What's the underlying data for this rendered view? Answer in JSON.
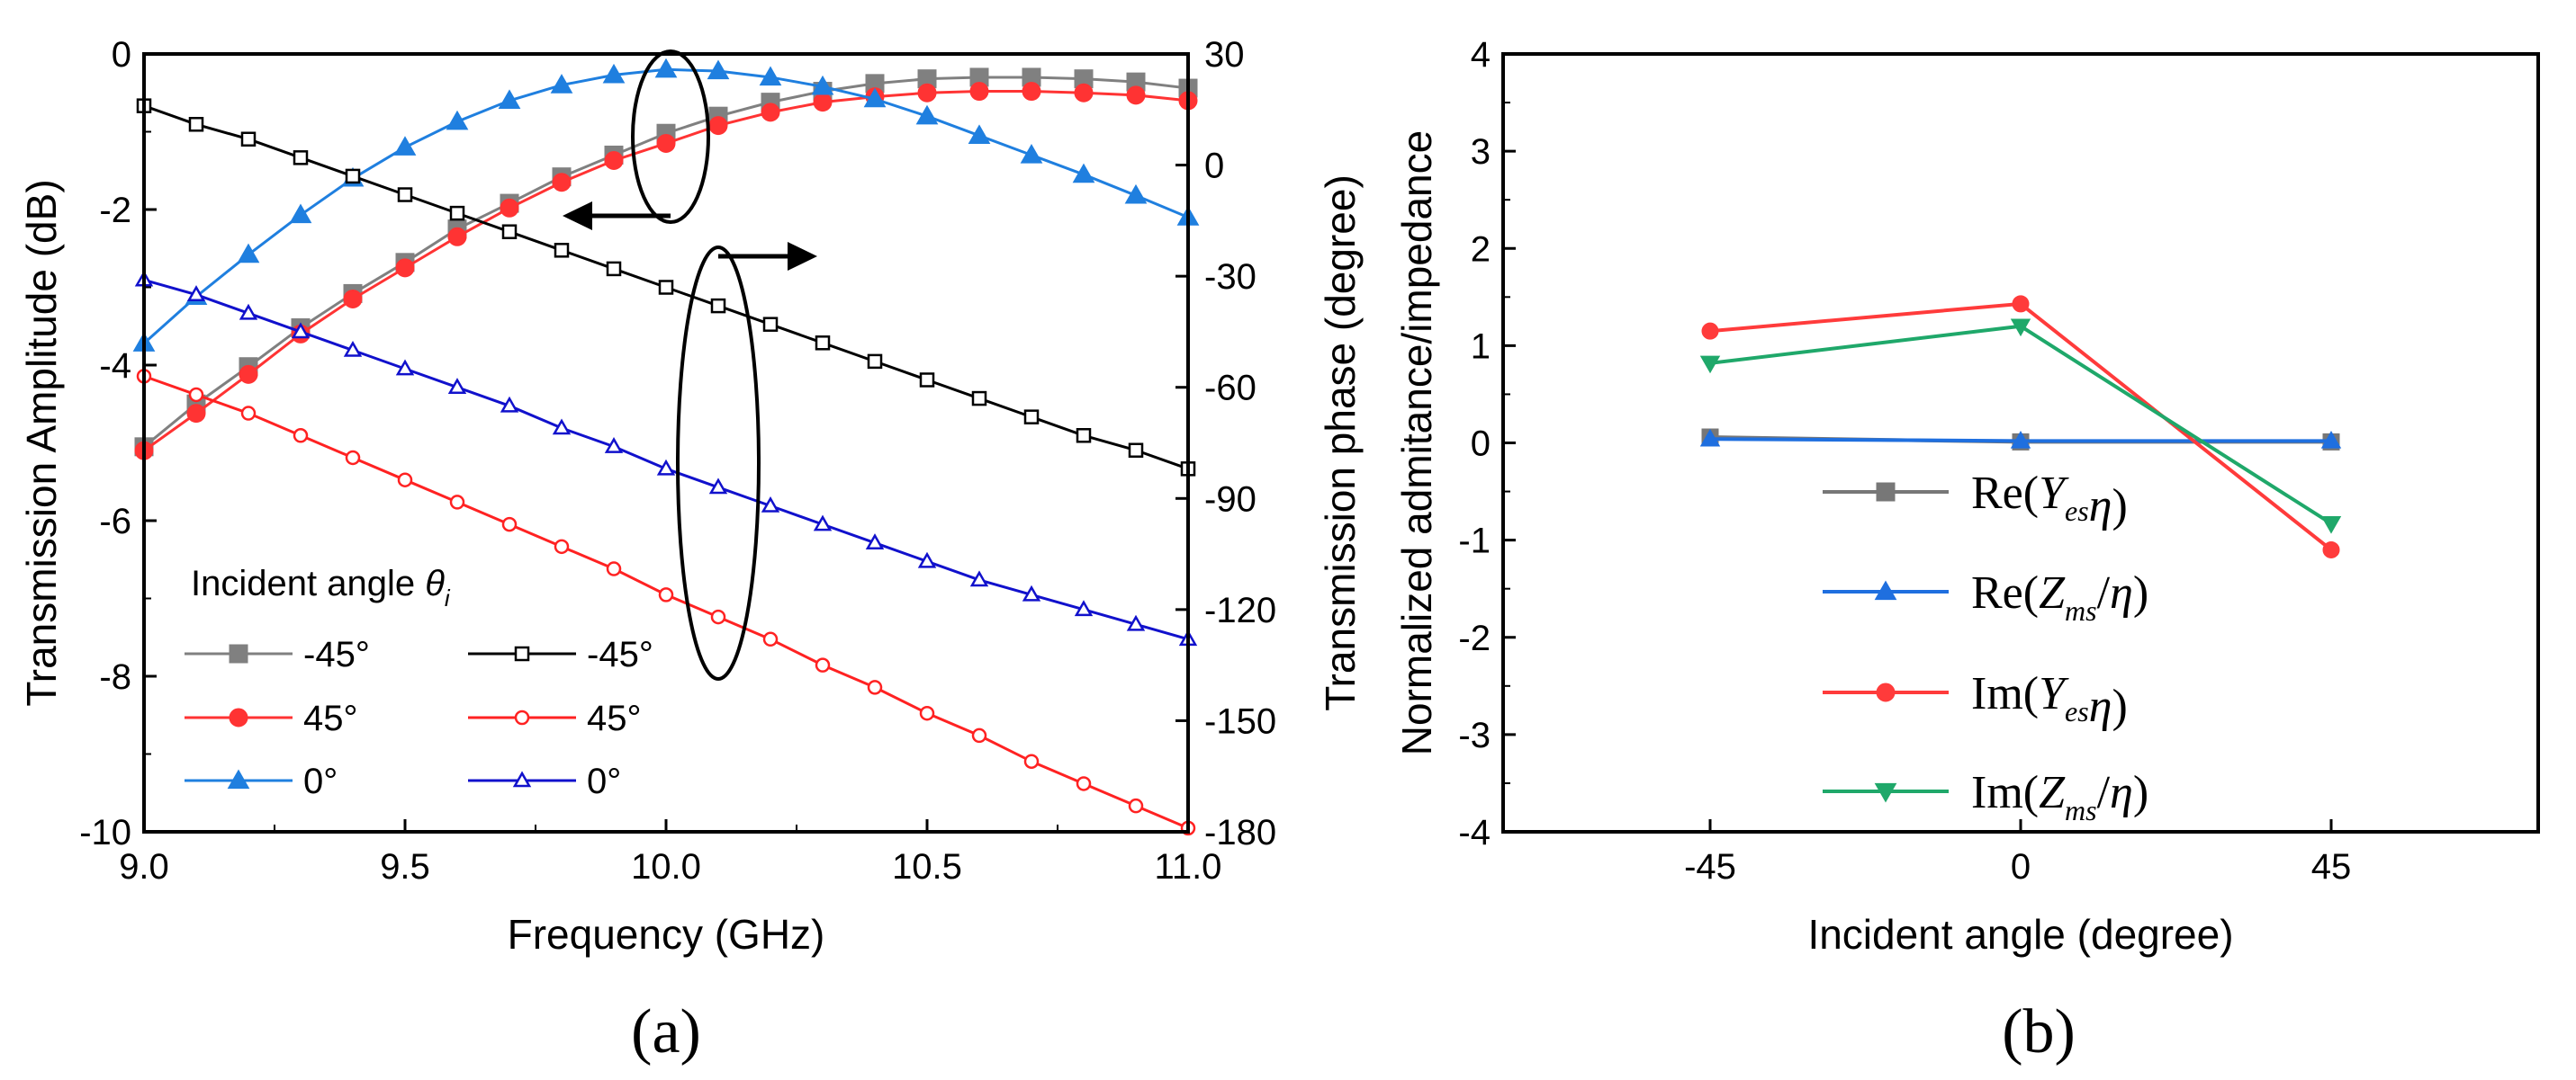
{
  "chart_data": [
    {
      "type": "line",
      "panel_label": "(a)",
      "xlabel": "Frequency (GHz)",
      "ylabel": "Transmission Amplitude (dB)",
      "ylabel_right": "Transmission phase (degree)",
      "xlim": [
        9.0,
        11.0
      ],
      "ylim": [
        -10,
        0
      ],
      "ylim_right": [
        -180,
        30
      ],
      "x_ticks": [
        "9.0",
        "9.5",
        "10.0",
        "10.5",
        "11.0"
      ],
      "y_ticks": [
        "0",
        "-2",
        "-4",
        "-6",
        "-8",
        "-10"
      ],
      "y_ticks_right": [
        "30",
        "0",
        "-30",
        "-60",
        "-90",
        "-120",
        "-150",
        "-180"
      ],
      "legend_title": "Incident angle",
      "legend_symbol": "θ",
      "legend_subscript": "i",
      "legend_placement": "bottom-left",
      "x": [
        9.0,
        9.1,
        9.2,
        9.3,
        9.4,
        9.5,
        9.6,
        9.7,
        9.8,
        9.9,
        10.0,
        10.1,
        10.2,
        10.3,
        10.4,
        10.5,
        10.6,
        10.7,
        10.8,
        10.9,
        11.0
      ],
      "series": [
        {
          "name": "-45°",
          "axis": "left",
          "color": "#808080",
          "marker": "square",
          "filled": true,
          "values": [
            -5.05,
            -4.5,
            -4.02,
            -3.52,
            -3.08,
            -2.68,
            -2.25,
            -1.92,
            -1.58,
            -1.3,
            -1.02,
            -0.8,
            -0.62,
            -0.48,
            -0.38,
            -0.32,
            -0.3,
            -0.3,
            -0.32,
            -0.36,
            -0.44
          ]
        },
        {
          "name": "45°",
          "axis": "left",
          "color": "#ff3333",
          "marker": "circle",
          "filled": true,
          "values": [
            -5.1,
            -4.62,
            -4.12,
            -3.6,
            -3.15,
            -2.75,
            -2.35,
            -1.98,
            -1.65,
            -1.37,
            -1.15,
            -0.92,
            -0.75,
            -0.62,
            -0.55,
            -0.5,
            -0.48,
            -0.48,
            -0.5,
            -0.53,
            -0.6
          ]
        },
        {
          "name": "0°",
          "axis": "left",
          "color": "#1f7fdf",
          "marker": "triangle-up",
          "filled": true,
          "values": [
            -3.72,
            -3.12,
            -2.58,
            -2.07,
            -1.6,
            -1.2,
            -0.87,
            -0.6,
            -0.4,
            -0.27,
            -0.2,
            -0.22,
            -0.3,
            -0.42,
            -0.58,
            -0.8,
            -1.05,
            -1.3,
            -1.55,
            -1.82,
            -2.1
          ]
        },
        {
          "name": "-45°",
          "axis": "right",
          "color": "#000000",
          "marker": "square",
          "filled": false,
          "values": [
            16,
            11,
            7,
            2,
            -3,
            -8,
            -13,
            -18,
            -23,
            -28,
            -33,
            -38,
            -43,
            -48,
            -53,
            -58,
            -63,
            -68,
            -73,
            -77,
            -82
          ]
        },
        {
          "name": "45°",
          "axis": "right",
          "color": "#ff2222",
          "marker": "circle",
          "filled": false,
          "values": [
            -57,
            -62,
            -67,
            -73,
            -79,
            -85,
            -91,
            -97,
            -103,
            -109,
            -116,
            -122,
            -128,
            -135,
            -141,
            -148,
            -154,
            -161,
            -167,
            -173,
            -179
          ]
        },
        {
          "name": "0°",
          "axis": "right",
          "color": "#1111cc",
          "marker": "triangle-up",
          "filled": false,
          "values": [
            -31,
            -35,
            -40,
            -45,
            -50,
            -55,
            -60,
            -65,
            -71,
            -76,
            -82,
            -87,
            -92,
            -97,
            -102,
            -107,
            -112,
            -116,
            -120,
            -124,
            -128
          ]
        }
      ]
    },
    {
      "type": "line",
      "panel_label": "(b)",
      "xlabel": "Incident angle (degree)",
      "ylabel": "Normalized admitance/impedance",
      "xlim": [
        -75,
        75
      ],
      "ylim": [
        -4,
        4
      ],
      "x_ticks": [
        "-45",
        "0",
        "45"
      ],
      "y_ticks": [
        "4",
        "3",
        "2",
        "1",
        "0",
        "-1",
        "-2",
        "-3",
        "-4"
      ],
      "x": [
        -45,
        0,
        45
      ],
      "legend_placement": "lower-center",
      "series": [
        {
          "fn": "Re",
          "var": "Y",
          "sub": "es",
          "op": "",
          "eta": "η",
          "color": "#777777",
          "marker": "square",
          "values": [
            0.06,
            0.01,
            0.01
          ]
        },
        {
          "fn": "Re",
          "var": "Z",
          "sub": "ms",
          "op": "/",
          "eta": "η",
          "color": "#1f6fdf",
          "marker": "triangle-up",
          "values": [
            0.04,
            0.02,
            0.02
          ]
        },
        {
          "fn": "Im",
          "var": "Y",
          "sub": "es",
          "op": "",
          "eta": "η",
          "color": "#ff3b3b",
          "marker": "circle",
          "values": [
            1.15,
            1.43,
            -1.1
          ]
        },
        {
          "fn": "Im",
          "var": "Z",
          "sub": "ms",
          "op": "/",
          "eta": "η",
          "color": "#1fa86a",
          "marker": "triangle-down",
          "values": [
            0.82,
            1.2,
            -0.83
          ]
        }
      ]
    }
  ]
}
